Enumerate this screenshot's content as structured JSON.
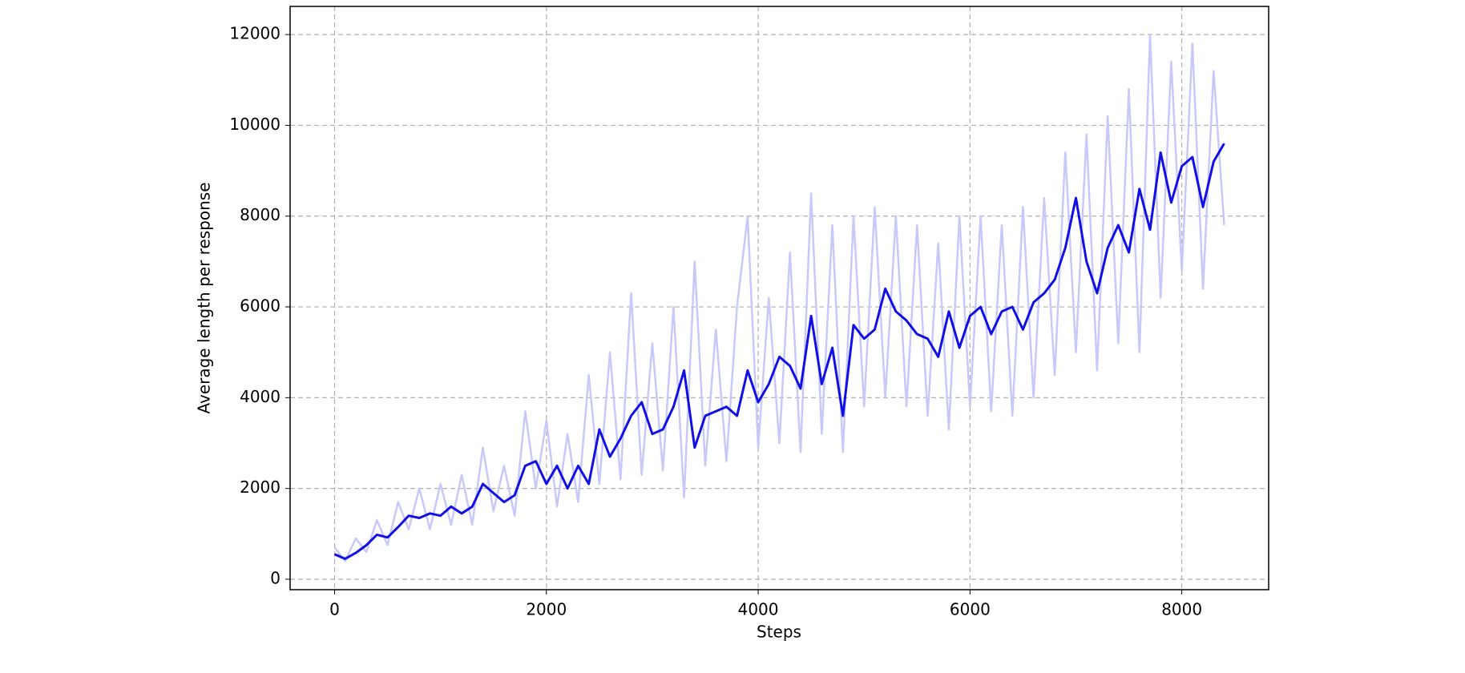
{
  "chart_data": {
    "type": "line",
    "x_label": "Steps",
    "y_label": "Average length per response",
    "x": [
      0,
      100,
      200,
      300,
      400,
      500,
      600,
      700,
      800,
      900,
      1000,
      1100,
      1200,
      1300,
      1400,
      1500,
      1600,
      1700,
      1800,
      1900,
      2000,
      2100,
      2200,
      2300,
      2400,
      2500,
      2600,
      2700,
      2800,
      2900,
      3000,
      3100,
      3200,
      3300,
      3400,
      3500,
      3600,
      3700,
      3800,
      3900,
      4000,
      4100,
      4200,
      4300,
      4400,
      4500,
      4600,
      4700,
      4800,
      4900,
      5000,
      5100,
      5200,
      5300,
      5400,
      5500,
      5600,
      5700,
      5800,
      5900,
      6000,
      6100,
      6200,
      6300,
      6400,
      6500,
      6600,
      6700,
      6800,
      6900,
      7000,
      7100,
      7200,
      7300,
      7400,
      7500,
      7600,
      7700,
      7800,
      7900,
      8000,
      8100,
      8200,
      8300,
      8400
    ],
    "series": [
      {
        "color": "#c8c8fa",
        "width": 2.5,
        "values": [
          700,
          400,
          900,
          600,
          1300,
          750,
          1700,
          1100,
          2000,
          1100,
          2100,
          1200,
          2300,
          1200,
          2900,
          1500,
          2500,
          1400,
          3700,
          2000,
          3500,
          1600,
          3200,
          1700,
          4500,
          2100,
          5000,
          2200,
          6300,
          2300,
          5200,
          2400,
          6000,
          1800,
          7000,
          2500,
          5500,
          2600,
          6000,
          8000,
          2900,
          6200,
          3000,
          7200,
          2800,
          8500,
          3200,
          7800,
          2800,
          8000,
          3800,
          8200,
          4000,
          8000,
          3800,
          7800,
          3600,
          7400,
          3300,
          8000,
          3800,
          8000,
          3700,
          7800,
          3600,
          8200,
          4000,
          8400,
          4500,
          9400,
          5000,
          9800,
          4600,
          10200,
          5200,
          10800,
          5000,
          12000,
          6200,
          11400,
          6800,
          11800,
          6400,
          11200,
          7800
        ]
      },
      {
        "color": "#1010e6",
        "width": 3,
        "values": [
          550,
          450,
          580,
          750,
          980,
          920,
          1150,
          1400,
          1350,
          1450,
          1400,
          1600,
          1450,
          1600,
          2100,
          1900,
          1700,
          1850,
          2500,
          2600,
          2100,
          2500,
          2000,
          2500,
          2100,
          3300,
          2700,
          3100,
          3600,
          3900,
          3200,
          3300,
          3800,
          4600,
          2900,
          3600,
          3700,
          3800,
          3600,
          4600,
          3900,
          4300,
          4900,
          4700,
          4200,
          5800,
          4300,
          5100,
          3600,
          5600,
          5300,
          5500,
          6400,
          5900,
          5700,
          5400,
          5300,
          4900,
          5900,
          5100,
          5800,
          6000,
          5400,
          5900,
          6000,
          5500,
          6100,
          6300,
          6600,
          7300,
          8400,
          7000,
          6300,
          7300,
          7800,
          7200,
          8600,
          7700,
          9400,
          8300,
          9100,
          9300,
          8200,
          9200,
          9600
        ]
      }
    ],
    "xlim": [
      -420,
      8820
    ],
    "xticks": [
      0,
      2000,
      4000,
      6000,
      8000
    ],
    "ylim": [
      -230,
      12620
    ],
    "yticks": [
      0,
      2000,
      4000,
      6000,
      8000,
      10000,
      12000
    ],
    "grid": true
  }
}
